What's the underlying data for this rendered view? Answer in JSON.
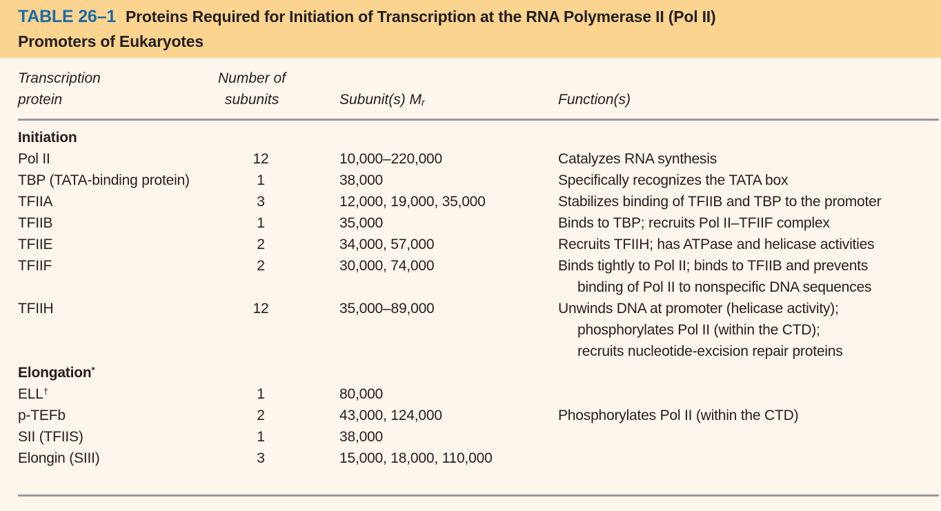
{
  "title": {
    "number": "TABLE 26–1",
    "line1": "Proteins Required for Initiation of Transcription at the RNA Polymerase II (Pol II)",
    "line2": "Promoters of Eukaryotes"
  },
  "headers": {
    "protein_1": "Transcription",
    "protein_2": "protein",
    "subunits_1": "Number of",
    "subunits_2": "subunits",
    "mr": "Subunit(s) M",
    "mr_sub": "r",
    "function": "Function(s)"
  },
  "sections": {
    "initiation": "Initiation",
    "elongation": "Elongation",
    "elongation_mark": "*"
  },
  "rows": [
    {
      "protein": "Pol II",
      "subunits": "12",
      "mr": "10,000–220,000",
      "function": [
        "Catalyzes RNA synthesis"
      ]
    },
    {
      "protein": "TBP (TATA-binding protein)",
      "subunits": "1",
      "mr": "38,000",
      "function": [
        "Specifically recognizes the TATA box"
      ]
    },
    {
      "protein": "TFIIA",
      "subunits": "3",
      "mr": "12,000, 19,000, 35,000",
      "function": [
        "Stabilizes binding of TFIIB and TBP to the promoter"
      ]
    },
    {
      "protein": "TFIIB",
      "subunits": "1",
      "mr": "35,000",
      "function": [
        "Binds to TBP; recruits Pol II–TFIIF complex"
      ]
    },
    {
      "protein": "TFIIE",
      "subunits": "2",
      "mr": "34,000, 57,000",
      "function": [
        "Recruits TFIIH; has ATPase and helicase activities"
      ]
    },
    {
      "protein": "TFIIF",
      "subunits": "2",
      "mr": "30,000, 74,000",
      "function": [
        "Binds tightly to Pol II; binds to TFIIB and prevents",
        "binding of Pol II to nonspecific DNA sequences"
      ]
    },
    {
      "protein": "TFIIH",
      "subunits": "12",
      "mr": "35,000–89,000",
      "function": [
        "Unwinds DNA at promoter (helicase activity);",
        "phosphorylates Pol II (within the CTD);",
        "recruits nucleotide-excision repair proteins"
      ]
    },
    {
      "protein": "ELL",
      "protein_mark": "†",
      "subunits": "1",
      "mr": "80,000",
      "function": []
    },
    {
      "protein": "p-TEFb",
      "subunits": "2",
      "mr": "43,000, 124,000",
      "function": [
        "Phosphorylates Pol II (within the CTD)"
      ]
    },
    {
      "protein": "SII (TFIIS)",
      "subunits": "1",
      "mr": "38,000",
      "function": []
    },
    {
      "protein": "Elongin (SIII)",
      "subunits": "3",
      "mr": "15,000, 18,000, 110,000",
      "function": []
    }
  ]
}
